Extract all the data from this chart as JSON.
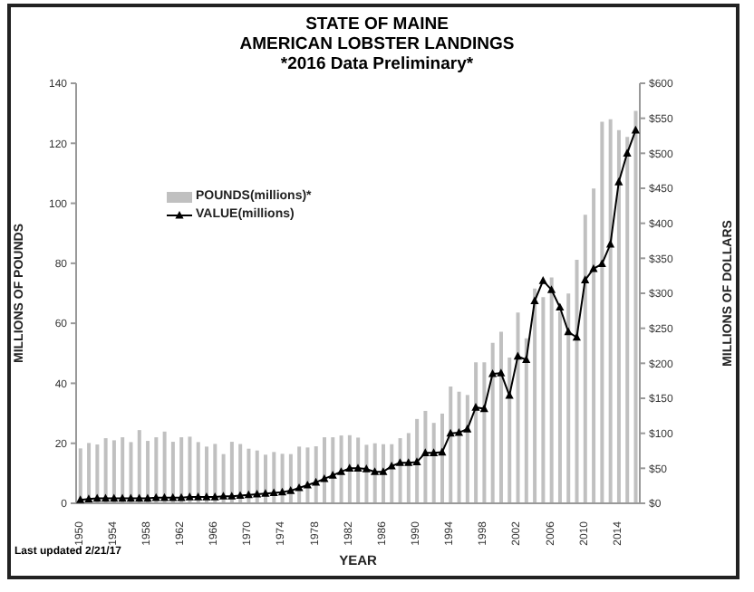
{
  "chart_data": {
    "type": "bar",
    "title": "STATE OF MAINE\nAMERICAN LOBSTER LANDINGS",
    "subtitle": "*2016 Data Preliminary*",
    "xlabel": "YEAR",
    "ylabel": "MILLIONS OF POUNDS",
    "y2label": "MILLIONS OF DOLLARS",
    "annotations": [
      "Last updated 2/21/17"
    ],
    "categories": [
      "1950",
      null,
      null,
      null,
      "1954",
      null,
      null,
      null,
      "1958",
      null,
      null,
      null,
      "1962",
      null,
      null,
      null,
      "1966",
      null,
      null,
      null,
      "1970",
      null,
      null,
      null,
      "1974",
      null,
      null,
      null,
      "1978",
      null,
      null,
      null,
      "1982",
      null,
      null,
      null,
      "1986",
      null,
      null,
      null,
      "1990",
      null,
      null,
      null,
      "1994",
      null,
      null,
      null,
      "1998",
      null,
      null,
      null,
      "2002",
      null,
      null,
      null,
      "2006",
      null,
      null,
      null,
      "2010",
      null,
      null,
      null,
      "2014",
      null,
      null
    ],
    "series": [
      {
        "name": "POUNDS(millions)*",
        "color": "#c0c0c0",
        "values": [
          18.3,
          20.1,
          19.6,
          21.7,
          21.0,
          22.0,
          20.4,
          24.4,
          20.8,
          22.0,
          23.9,
          20.5,
          22.0,
          22.2,
          20.4,
          18.9,
          19.8,
          16.4,
          20.5,
          19.8,
          18.2,
          17.6,
          16.2,
          17.1,
          16.5,
          16.4,
          18.9,
          18.6,
          19.0,
          22.0,
          22.0,
          22.6,
          22.7,
          21.9,
          19.5,
          20.0,
          19.7,
          19.7,
          21.7,
          23.4,
          28.1,
          30.8,
          26.8,
          29.9,
          38.9,
          37.2,
          36.1,
          47.0,
          47.0,
          53.5,
          57.2,
          48.6,
          63.6,
          55.0,
          71.6,
          68.7,
          75.3,
          63.9,
          69.9,
          81.2,
          96.2,
          104.9,
          127.2,
          128.0,
          124.4,
          122.1,
          130.8
        ]
      },
      {
        "name": "VALUE(millions)",
        "type": "line",
        "axis": "y2",
        "color": "#000000",
        "marker": "triangle",
        "values": [
          5,
          6,
          7,
          7,
          7,
          7,
          7,
          7,
          7,
          8,
          8,
          8,
          8,
          9,
          9,
          9,
          9,
          10,
          10,
          11,
          12,
          13,
          14,
          15,
          16,
          18,
          22,
          26,
          30,
          35,
          40,
          45,
          50,
          50,
          49,
          45,
          45,
          53,
          58,
          58,
          59,
          72,
          72,
          73,
          100,
          101,
          106,
          137,
          135,
          185,
          186,
          154,
          210,
          205,
          289,
          318,
          305,
          280,
          245,
          237,
          319,
          335,
          342,
          370,
          459,
          500,
          533
        ]
      }
    ],
    "ylim": [
      0,
      140
    ],
    "yticks": [
      0,
      20,
      40,
      60,
      80,
      100,
      120,
      140
    ],
    "y2lim": [
      0,
      600
    ],
    "y2ticks": [
      {
        "value": 0,
        "label": "$0"
      },
      {
        "value": 50,
        "label": "$50"
      },
      {
        "value": 100,
        "label": "$100"
      },
      {
        "value": 150,
        "label": "$150"
      },
      {
        "value": 200,
        "label": "$200"
      },
      {
        "value": 250,
        "label": "$250"
      },
      {
        "value": 300,
        "label": "$300"
      },
      {
        "value": 350,
        "label": "$350"
      },
      {
        "value": 400,
        "label": "$400"
      },
      {
        "value": 450,
        "label": "$450"
      },
      {
        "value": 500,
        "label": "$500"
      },
      {
        "value": 550,
        "label": "$550"
      },
      {
        "value": 600,
        "label": "$600"
      }
    ],
    "legend": "top left",
    "grid": false
  }
}
